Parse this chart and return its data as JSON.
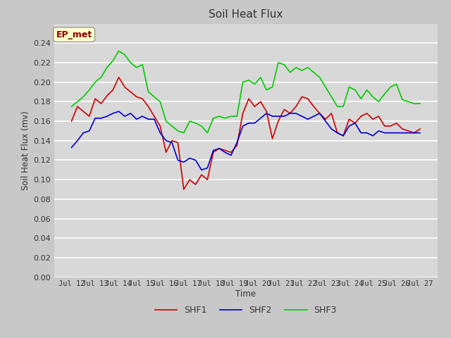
{
  "title": "Soil Heat Flux",
  "ylabel": "Soil Heat Flux (mv)",
  "xlabel": "Time",
  "ylim": [
    0.0,
    0.26
  ],
  "yticks": [
    0.0,
    0.02,
    0.04,
    0.06,
    0.08,
    0.1,
    0.12,
    0.14,
    0.16,
    0.18,
    0.2,
    0.22,
    0.24
  ],
  "xtick_labels": [
    "Jul 12",
    "Jul 13",
    "Jul 14",
    "Jul 15",
    "Jul 16",
    "Jul 17",
    "Jul 18",
    "Jul 19",
    "Jul 20",
    "Jul 21",
    "Jul 22",
    "Jul 23",
    "Jul 24",
    "Jul 25",
    "Jul 26",
    "Jul 27"
  ],
  "annotation_text": "EP_met",
  "annotation_color": "#8B0000",
  "annotation_bg": "#FFFFCC",
  "fig_bg": "#C8C8C8",
  "plot_bg": "#D8D8D8",
  "shf1_color": "#CC0000",
  "shf2_color": "#0000CC",
  "shf3_color": "#00CC00",
  "shf1": [
    0.16,
    0.175,
    0.17,
    0.165,
    0.183,
    0.178,
    0.186,
    0.192,
    0.205,
    0.195,
    0.19,
    0.185,
    0.183,
    0.175,
    0.165,
    0.155,
    0.128,
    0.14,
    0.138,
    0.09,
    0.1,
    0.095,
    0.105,
    0.1,
    0.128,
    0.132,
    0.13,
    0.128,
    0.135,
    0.168,
    0.183,
    0.175,
    0.18,
    0.17,
    0.142,
    0.16,
    0.172,
    0.168,
    0.175,
    0.185,
    0.183,
    0.175,
    0.168,
    0.162,
    0.168,
    0.148,
    0.145,
    0.162,
    0.158,
    0.165,
    0.168,
    0.162,
    0.165,
    0.155,
    0.155,
    0.158,
    0.152,
    0.15,
    0.148,
    0.152
  ],
  "shf2": [
    0.133,
    0.14,
    0.148,
    0.15,
    0.163,
    0.163,
    0.165,
    0.168,
    0.17,
    0.165,
    0.168,
    0.162,
    0.165,
    0.162,
    0.162,
    0.148,
    0.14,
    0.138,
    0.12,
    0.118,
    0.122,
    0.12,
    0.11,
    0.112,
    0.13,
    0.132,
    0.128,
    0.125,
    0.138,
    0.155,
    0.158,
    0.158,
    0.163,
    0.168,
    0.165,
    0.165,
    0.165,
    0.168,
    0.168,
    0.165,
    0.162,
    0.165,
    0.168,
    0.16,
    0.152,
    0.148,
    0.145,
    0.155,
    0.158,
    0.148,
    0.148,
    0.145,
    0.15,
    0.148,
    0.148,
    0.148,
    0.148,
    0.148,
    0.148,
    0.148
  ],
  "shf3": [
    0.175,
    0.18,
    0.185,
    0.192,
    0.2,
    0.205,
    0.215,
    0.222,
    0.232,
    0.228,
    0.22,
    0.215,
    0.218,
    0.19,
    0.185,
    0.18,
    0.16,
    0.155,
    0.15,
    0.148,
    0.16,
    0.158,
    0.155,
    0.148,
    0.163,
    0.165,
    0.163,
    0.165,
    0.165,
    0.2,
    0.202,
    0.198,
    0.205,
    0.192,
    0.195,
    0.22,
    0.218,
    0.21,
    0.215,
    0.212,
    0.215,
    0.21,
    0.205,
    0.195,
    0.185,
    0.175,
    0.175,
    0.195,
    0.192,
    0.183,
    0.192,
    0.185,
    0.18,
    0.188,
    0.195,
    0.198,
    0.182,
    0.18,
    0.178,
    0.178
  ]
}
